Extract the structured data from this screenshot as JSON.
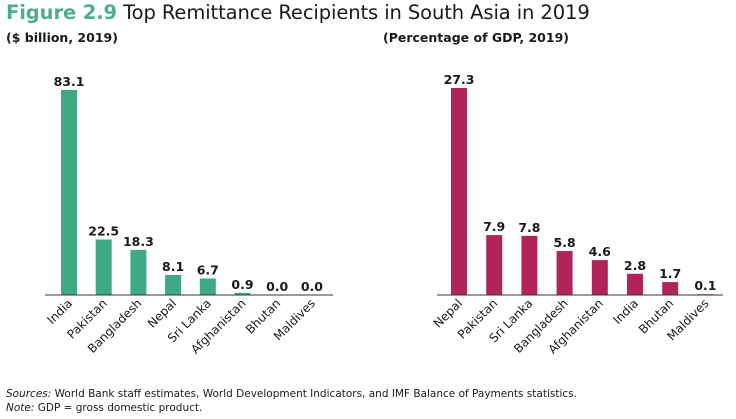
{
  "figure_label": "Figure 2.9",
  "title": "Top Remittance Recipients in South Asia in 2019",
  "colors": {
    "left_bar": "#3fa886",
    "right_bar": "#b0245a",
    "figure_label": "#4cae8e",
    "axis": "#333333"
  },
  "chart_data": [
    {
      "type": "bar",
      "title": "($ billion, 2019)",
      "categories": [
        "India",
        "Pakistan",
        "Bangladesh",
        "Nepal",
        "Sri Lanka",
        "Afghanistan",
        "Bhutan",
        "Maldives"
      ],
      "values": [
        83.1,
        22.5,
        18.3,
        8.1,
        6.7,
        0.9,
        0.0,
        0.0
      ],
      "labels": [
        "83.1",
        "22.5",
        "18.3",
        "8.1",
        "6.7",
        "0.9",
        "0.0",
        "0.0"
      ],
      "xlabel": "",
      "ylabel": "",
      "ylim": [
        0,
        83.1
      ]
    },
    {
      "type": "bar",
      "title": "(Percentage of GDP, 2019)",
      "categories": [
        "Nepal",
        "Pakistan",
        "Sri Lanka",
        "Bangladesh",
        "Afghanistan",
        "India",
        "Bhutan",
        "Maldives"
      ],
      "values": [
        27.3,
        7.9,
        7.8,
        5.8,
        4.6,
        2.8,
        1.7,
        0.1
      ],
      "labels": [
        "27.3",
        "7.9",
        "7.8",
        "5.8",
        "4.6",
        "2.8",
        "1.7",
        "0.1"
      ],
      "xlabel": "",
      "ylabel": "",
      "ylim": [
        0,
        27.3
      ]
    }
  ],
  "footer": {
    "sources_label": "Sources:",
    "sources_text": " World Bank staff estimates, World Development Indicators, and IMF Balance of Payments statistics.",
    "note_label": "Note:",
    "note_text": " GDP = gross domestic product."
  }
}
